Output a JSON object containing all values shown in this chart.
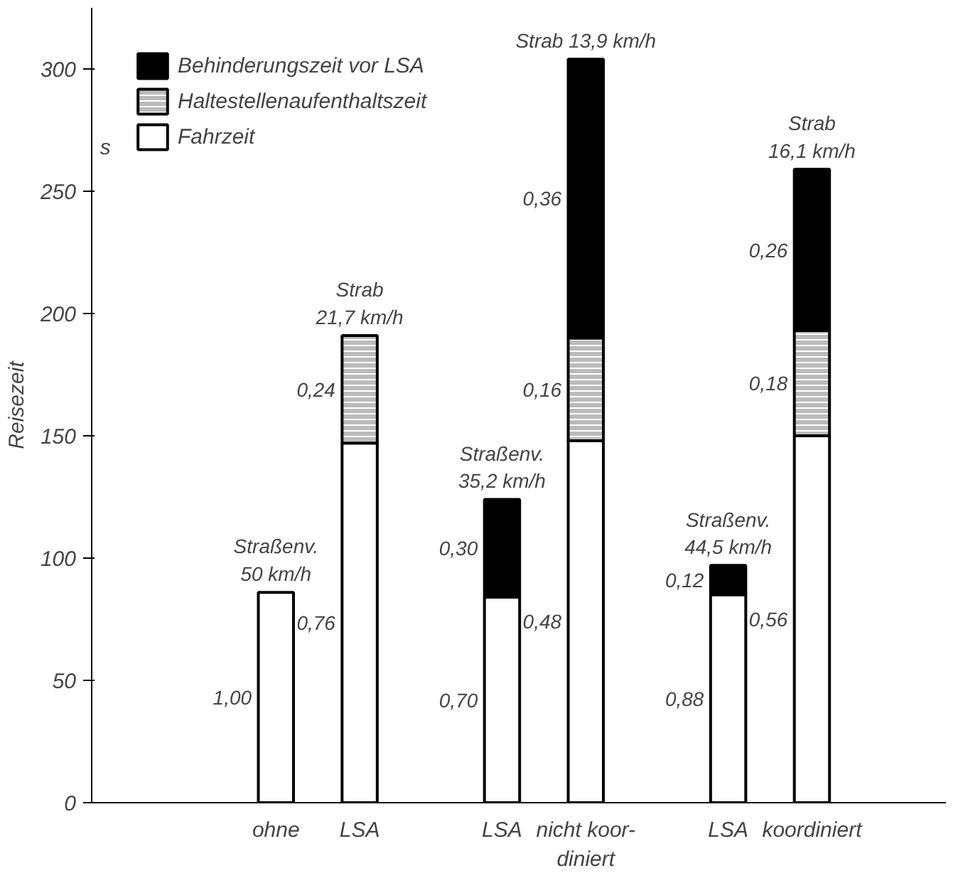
{
  "chart_data": {
    "type": "bar",
    "stacked": true,
    "ylabel": "Reisezeit",
    "annotations": [
      "s",
      "Straßenv.\n50 km/h",
      "Strab\n21,7 km/h",
      "Straßenv.\n35,2 km/h",
      "Strab 13,9 km/h",
      "Straßenv.\n44,5 km/h",
      "Strab\n16,1 km/h",
      "1,00",
      "0,76",
      "0,24",
      "0,70",
      "0,30",
      "0,48",
      "0,16",
      "0,36",
      "0,88",
      "0,12",
      "0,56",
      "0,18",
      "0,26"
    ],
    "categories": [
      "ohne",
      "LSA",
      "LSA",
      "nicht koor-\ndiniert",
      "LSA",
      "koordiniert"
    ],
    "series": [
      {
        "name": "Fahrzeit",
        "color": "#ffffff",
        "values": [
          86,
          147,
          84,
          148,
          85,
          150
        ]
      },
      {
        "name": "Haltestellenaufenthaltszeit",
        "color": "#bbbbbb",
        "values": [
          null,
          44,
          null,
          42,
          null,
          43
        ]
      },
      {
        "name": "Behinderungszeit vor LSA",
        "color": "#000000",
        "values": [
          null,
          null,
          40,
          114,
          12,
          66
        ]
      }
    ],
    "ylim": [
      0,
      325
    ],
    "yticks": [
      0,
      50,
      100,
      150,
      200,
      250,
      300
    ],
    "grid": false,
    "legend": "top left"
  }
}
